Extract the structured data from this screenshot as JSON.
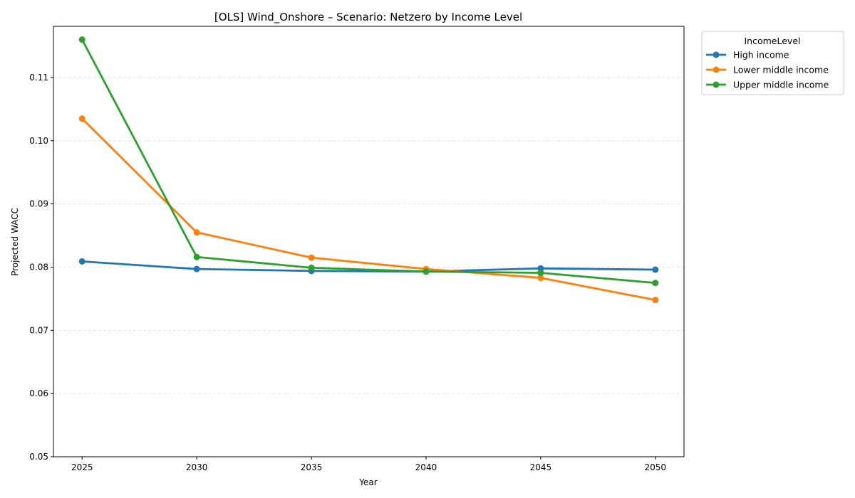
{
  "chart_data": {
    "type": "line",
    "title": "[OLS] Wind_Onshore – Scenario: Netzero by Income Level",
    "xlabel": "Year",
    "ylabel": "Projected WACC",
    "x": [
      2025,
      2030,
      2035,
      2040,
      2045,
      2050
    ],
    "x_tick_labels": [
      "2025",
      "2030",
      "2035",
      "2040",
      "2045",
      "2050"
    ],
    "y_ticks": [
      0.05,
      0.06,
      0.07,
      0.08,
      0.09,
      0.1,
      0.11
    ],
    "y_tick_labels": [
      "0.05",
      "0.06",
      "0.07",
      "0.08",
      "0.09",
      "0.10",
      "0.11"
    ],
    "xlim": [
      2023.75,
      2051.25
    ],
    "ylim": [
      0.05,
      0.1181
    ],
    "grid": "y-dashed",
    "legend": {
      "title": "IncomeLevel",
      "placement": "outside-top-right"
    },
    "series": [
      {
        "name": "High income",
        "color": "#1f77b4",
        "values": [
          0.0809,
          0.0797,
          0.0794,
          0.0793,
          0.0798,
          0.0796
        ]
      },
      {
        "name": "Lower middle income",
        "color": "#ff7f0e",
        "values": [
          0.1035,
          0.0855,
          0.0815,
          0.0797,
          0.0783,
          0.0748
        ]
      },
      {
        "name": "Upper middle income",
        "color": "#2ca02c",
        "values": [
          0.116,
          0.0816,
          0.0799,
          0.0793,
          0.0791,
          0.0775
        ]
      }
    ]
  }
}
